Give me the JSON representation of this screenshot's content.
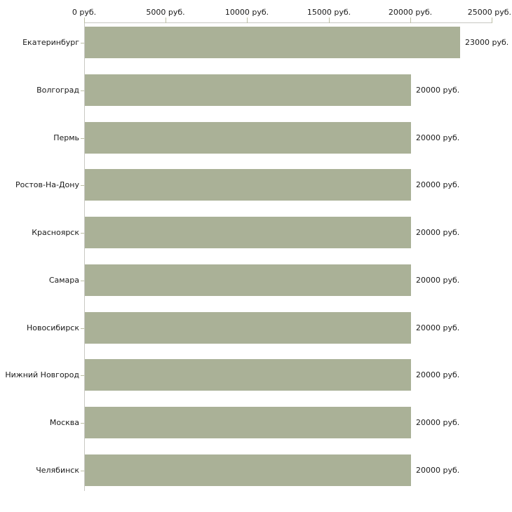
{
  "chart_data": {
    "type": "bar",
    "orientation": "horizontal",
    "title": "",
    "xlabel": "",
    "ylabel": "",
    "unit": "руб.",
    "categories": [
      "Екатеринбург",
      "Волгоград",
      "Пермь",
      "Ростов-На-Дону",
      "Красноярск",
      "Самара",
      "Новосибирск",
      "Нижний Новгород",
      "Москва",
      "Челябинск"
    ],
    "values": [
      23000,
      20000,
      20000,
      20000,
      20000,
      20000,
      20000,
      20000,
      20000,
      20000
    ],
    "value_labels": [
      "23000 руб.",
      "20000 руб.",
      "20000 руб.",
      "20000 руб.",
      "20000 руб.",
      "20000 руб.",
      "20000 руб.",
      "20000 руб.",
      "20000 руб.",
      "20000 руб."
    ],
    "x_ticks": [
      0,
      5000,
      10000,
      15000,
      20000,
      25000
    ],
    "x_tick_labels": [
      "0 руб.",
      "5000 руб.",
      "10000 руб.",
      "15000 руб.",
      "20000 руб.",
      "25000 руб."
    ],
    "xlim": [
      0,
      25000
    ],
    "grid": false,
    "legend": null,
    "colors": {
      "bar_fill": "#aab197",
      "axis_line": "#c8c8c3",
      "tick_mark": "#bcbfa4",
      "text": "#1a1a1a",
      "background": "#ffffff"
    }
  }
}
